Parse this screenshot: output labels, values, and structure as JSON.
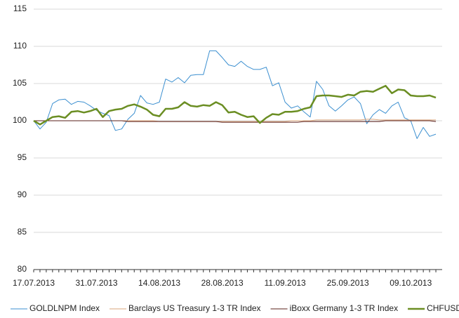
{
  "chart_data": {
    "type": "line",
    "categories": [
      "17.07.2013",
      null,
      null,
      null,
      null,
      null,
      null,
      null,
      null,
      null,
      "31.07.2013",
      null,
      null,
      null,
      null,
      null,
      null,
      null,
      null,
      null,
      "14.08.2013",
      null,
      null,
      null,
      null,
      null,
      null,
      null,
      null,
      null,
      "28.08.2013",
      null,
      null,
      null,
      null,
      null,
      null,
      null,
      null,
      null,
      "11.09.2013",
      null,
      null,
      null,
      null,
      null,
      null,
      null,
      null,
      null,
      "25.09.2013",
      null,
      null,
      null,
      null,
      null,
      null,
      null,
      null,
      null,
      "09.10.2013",
      null,
      null,
      null,
      null
    ],
    "series": [
      {
        "name": "GOLDLNPM Index",
        "color": "#3b8fd0",
        "width": 1,
        "values": [
          100,
          98.9,
          99.8,
          102.3,
          102.8,
          102.9,
          102.2,
          102.6,
          102.5,
          102.0,
          101.4,
          101.0,
          100.7,
          98.7,
          98.9,
          100.2,
          101.0,
          103.4,
          102.4,
          102.2,
          102.5,
          105.6,
          105.2,
          105.8,
          105.1,
          106.1,
          106.2,
          106.2,
          109.4,
          109.4,
          108.5,
          107.5,
          107.3,
          108.0,
          107.3,
          106.9,
          106.9,
          107.2,
          104.7,
          105.1,
          102.5,
          101.7,
          102.0,
          101.2,
          100.5,
          105.3,
          104.2,
          102.0,
          101.3,
          102.0,
          102.8,
          103.2,
          102.3,
          99.6,
          100.8,
          101.5,
          101.0,
          102.0,
          102.5,
          100.4,
          100.0,
          97.6,
          99.1,
          97.9,
          98.2
        ]
      },
      {
        "name": "Barclays US Treasury 1-3 TR Index",
        "color": "#d9a47a",
        "width": 1,
        "values": [
          100,
          100,
          100,
          100,
          100,
          100,
          100,
          100,
          100,
          100,
          100,
          100,
          100,
          100,
          100,
          100,
          100,
          100,
          100,
          100,
          99.9,
          99.9,
          99.9,
          99.9,
          99.9,
          99.9,
          99.9,
          99.9,
          99.9,
          99.9,
          99.9,
          99.9,
          99.9,
          99.9,
          99.9,
          99.9,
          99.9,
          99.9,
          99.9,
          99.9,
          99.9,
          100,
          100,
          100,
          100,
          100.1,
          100.1,
          100.1,
          100.1,
          100.1,
          100.1,
          100.1,
          100.1,
          100.2,
          100.2,
          100.1,
          100.1,
          100.1,
          100.1,
          100.1,
          100.1,
          100.1,
          100.1,
          100.1,
          100.1
        ]
      },
      {
        "name": "iBoxx Germany 1-3 TR Index",
        "color": "#5a1f1a",
        "width": 1,
        "values": [
          100,
          100,
          100,
          100,
          100,
          100,
          100,
          100,
          100,
          100,
          100,
          100,
          100,
          100,
          100,
          99.9,
          99.9,
          99.9,
          99.9,
          99.9,
          99.9,
          99.9,
          99.9,
          99.9,
          99.9,
          99.9,
          99.9,
          99.9,
          99.9,
          99.9,
          99.8,
          99.8,
          99.8,
          99.8,
          99.8,
          99.8,
          99.8,
          99.8,
          99.8,
          99.8,
          99.8,
          99.8,
          99.8,
          99.9,
          99.9,
          99.9,
          99.9,
          99.9,
          99.9,
          99.9,
          99.9,
          99.9,
          99.9,
          99.9,
          99.9,
          99.9,
          100,
          100,
          100,
          100,
          100,
          100,
          100,
          100,
          99.9
        ]
      },
      {
        "name": "CHFUSD Curncy",
        "color": "#6b8e23",
        "width": 2.5,
        "values": [
          100,
          99.5,
          100.0,
          100.5,
          100.6,
          100.4,
          101.2,
          101.3,
          101.1,
          101.3,
          101.6,
          100.5,
          101.3,
          101.5,
          101.6,
          102.0,
          102.2,
          101.9,
          101.5,
          100.8,
          100.6,
          101.6,
          101.6,
          101.8,
          102.5,
          102.0,
          101.9,
          102.1,
          102.0,
          102.5,
          102.1,
          101.1,
          101.2,
          100.8,
          100.5,
          100.6,
          99.7,
          100.4,
          100.9,
          100.8,
          101.2,
          101.2,
          101.3,
          101.6,
          101.8,
          103.3,
          103.4,
          103.4,
          103.3,
          103.2,
          103.5,
          103.4,
          103.9,
          104.0,
          103.9,
          104.3,
          104.7,
          103.7,
          104.2,
          104.1,
          103.4,
          103.3,
          103.3,
          103.4,
          103.1
        ]
      }
    ],
    "ylim": [
      80,
      115
    ],
    "yticks": [
      80,
      85,
      90,
      95,
      100,
      105,
      110,
      115
    ],
    "grid": true,
    "legend": "bottom"
  }
}
